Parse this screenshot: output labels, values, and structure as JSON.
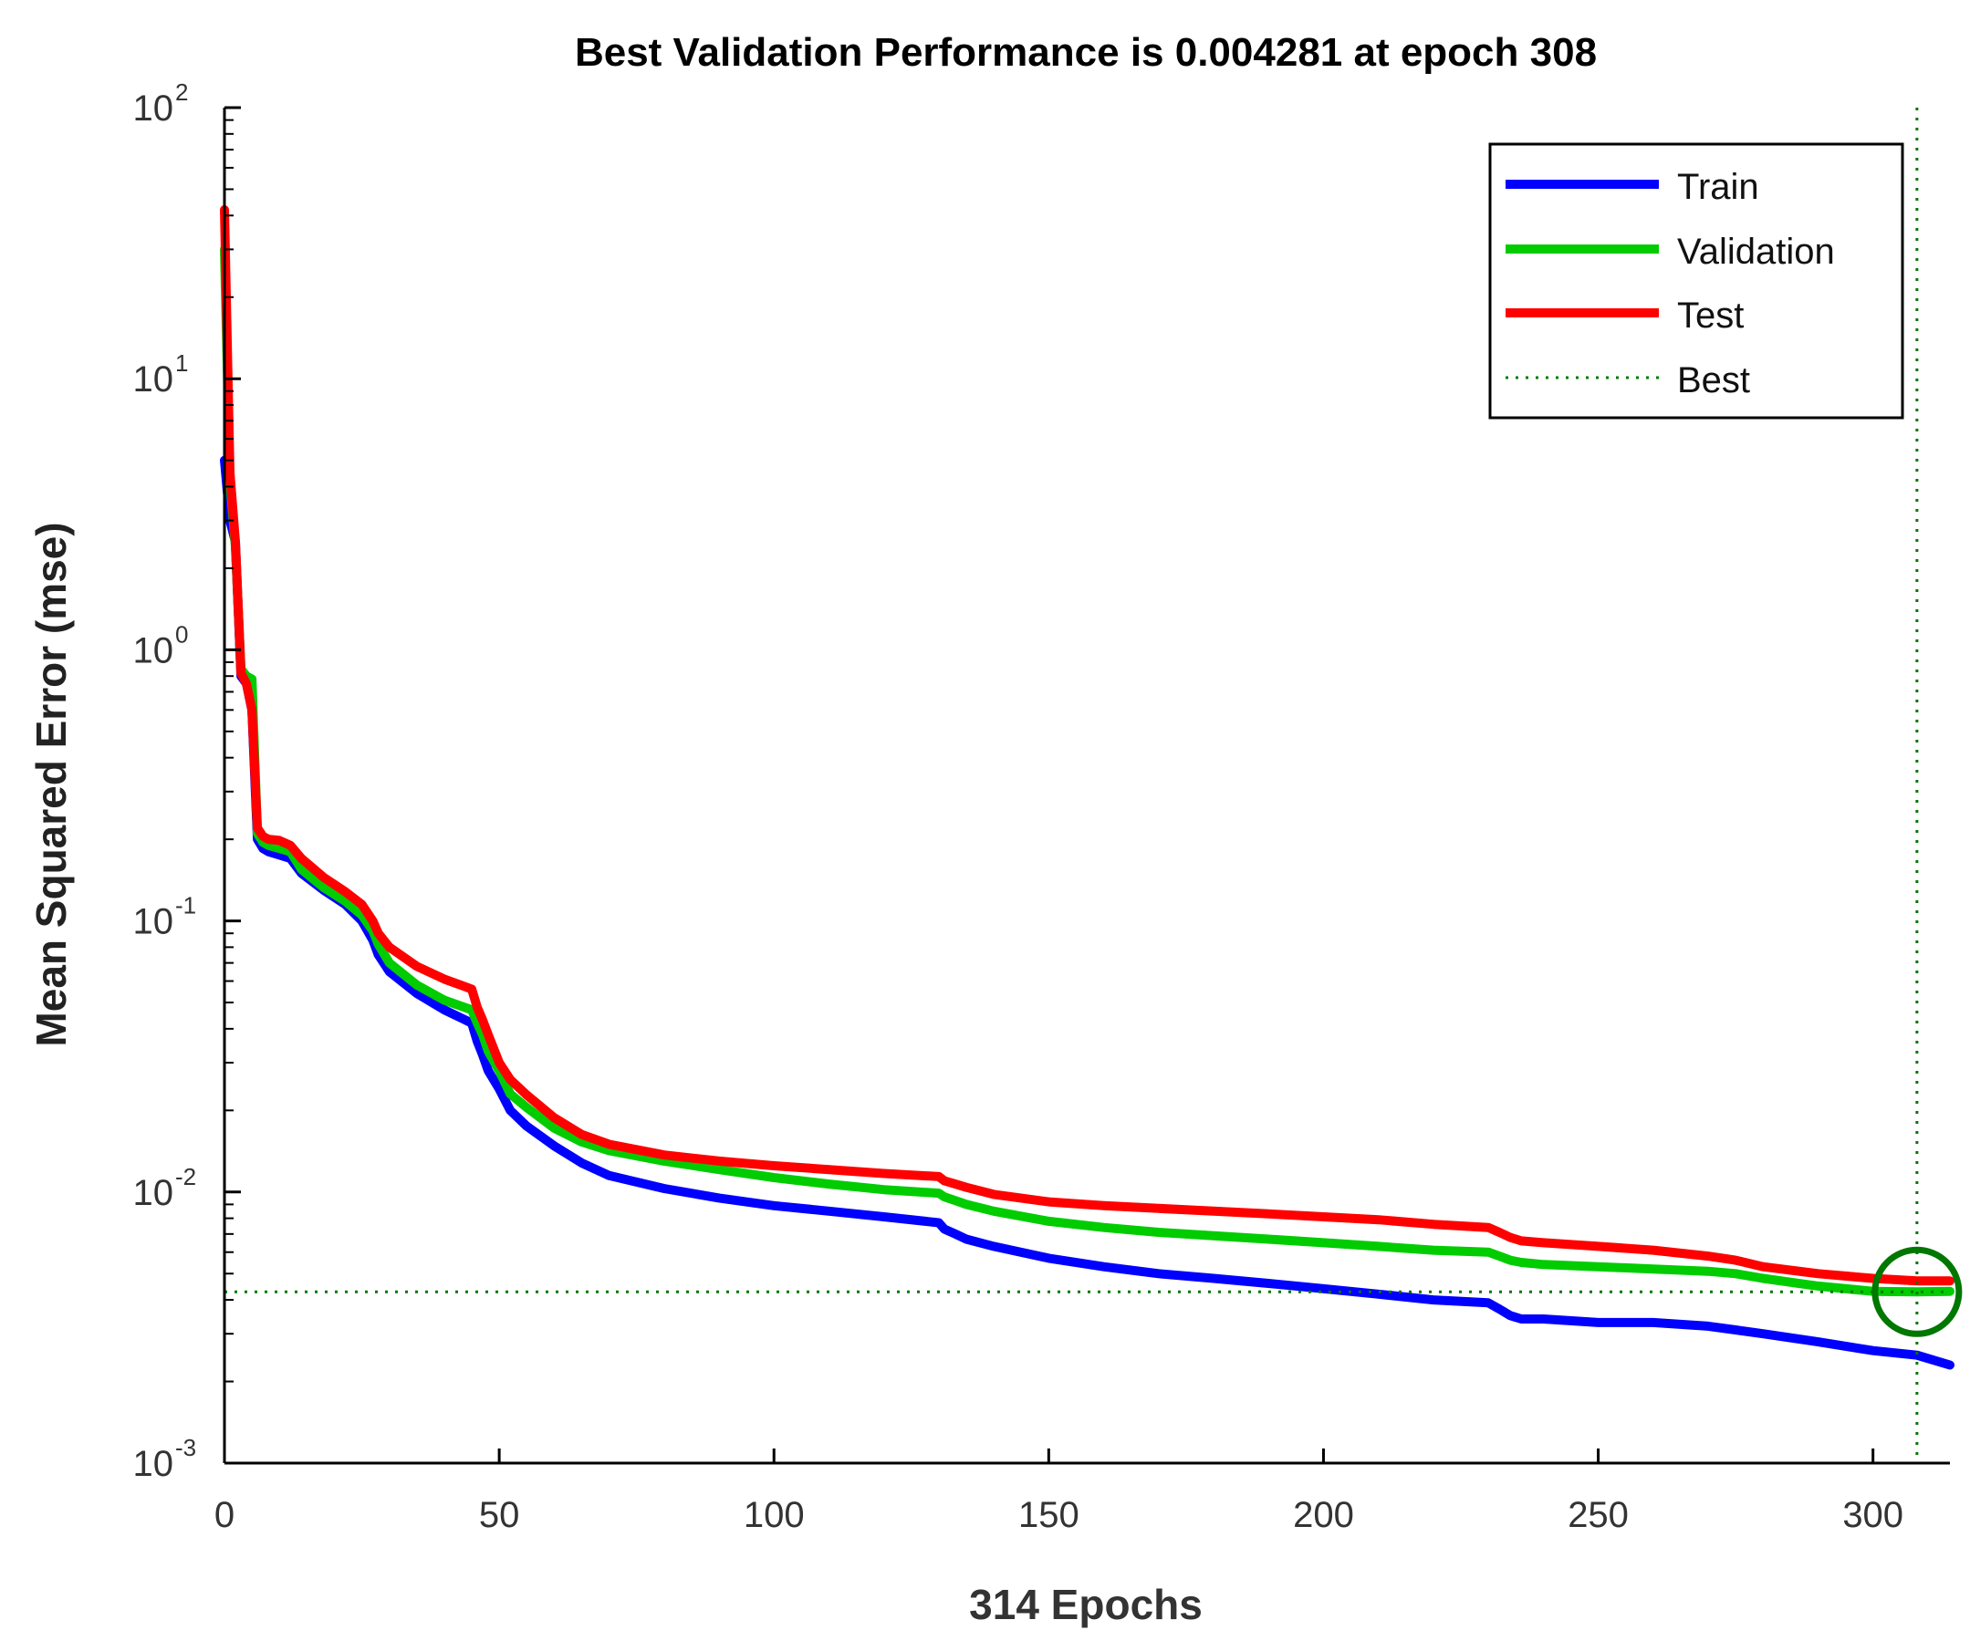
{
  "colors": {
    "train": "#0000ff",
    "validation": "#00cc00",
    "test": "#ff0000",
    "best": "#007700",
    "axis": "#000000"
  },
  "chart_data": {
    "type": "line",
    "title": "Best Validation Performance is 0.004281 at epoch 308",
    "xlabel": "314 Epochs",
    "ylabel": "Mean Squared Error  (mse)",
    "yscale": "log",
    "xlim": [
      0,
      314
    ],
    "ylim": [
      0.001,
      100
    ],
    "xticks": [
      0,
      50,
      100,
      150,
      200,
      250,
      300
    ],
    "xtick_labels": [
      "0",
      "50",
      "100",
      "150",
      "200",
      "250",
      "300"
    ],
    "yticks": [
      0.001,
      0.01,
      0.1,
      1,
      10,
      100
    ],
    "ytick_labels": [
      {
        "base": "10",
        "exp": "-3"
      },
      {
        "base": "10",
        "exp": "-2"
      },
      {
        "base": "10",
        "exp": "-1"
      },
      {
        "base": "10",
        "exp": "0"
      },
      {
        "base": "10",
        "exp": "1"
      },
      {
        "base": "10",
        "exp": "2"
      }
    ],
    "legend": {
      "position": "top-right",
      "entries": [
        "Train",
        "Validation",
        "Test",
        "Best"
      ]
    },
    "best": {
      "epoch": 308,
      "value": 0.004281
    },
    "series": [
      {
        "name": "Train",
        "x": [
          0,
          1,
          2,
          3,
          4,
          5,
          6,
          7,
          8,
          10,
          12,
          14,
          18,
          22,
          25,
          27,
          28,
          30,
          35,
          40,
          45,
          46,
          47,
          48,
          50,
          52,
          55,
          60,
          65,
          70,
          80,
          90,
          100,
          110,
          120,
          130,
          131,
          133,
          135,
          140,
          150,
          160,
          170,
          180,
          190,
          200,
          210,
          220,
          230,
          232,
          234,
          236,
          240,
          250,
          260,
          270,
          275,
          280,
          290,
          300,
          308,
          314
        ],
        "values": [
          5,
          3,
          2.5,
          0.8,
          0.75,
          0.6,
          0.2,
          0.185,
          0.18,
          0.175,
          0.17,
          0.15,
          0.13,
          0.115,
          0.1,
          0.085,
          0.075,
          0.065,
          0.054,
          0.047,
          0.042,
          0.036,
          0.032,
          0.028,
          0.024,
          0.02,
          0.0175,
          0.0148,
          0.0128,
          0.0115,
          0.0103,
          0.0095,
          0.0089,
          0.0085,
          0.0081,
          0.0077,
          0.0073,
          0.007,
          0.0067,
          0.0063,
          0.0057,
          0.0053,
          0.005,
          0.0048,
          0.0046,
          0.0044,
          0.0042,
          0.004,
          0.0039,
          0.0037,
          0.0035,
          0.0034,
          0.0034,
          0.0033,
          0.0033,
          0.0032,
          0.0031,
          0.003,
          0.0028,
          0.0026,
          0.0025,
          0.0023
        ]
      },
      {
        "name": "Validation",
        "x": [
          0,
          1,
          2,
          3,
          4,
          5,
          6,
          7,
          8,
          10,
          12,
          14,
          18,
          22,
          25,
          27,
          28,
          30,
          35,
          40,
          45,
          46,
          47,
          48,
          50,
          52,
          55,
          60,
          65,
          70,
          80,
          90,
          100,
          110,
          120,
          130,
          131,
          133,
          135,
          140,
          150,
          160,
          170,
          180,
          190,
          200,
          210,
          220,
          230,
          232,
          234,
          236,
          240,
          250,
          260,
          270,
          275,
          280,
          290,
          300,
          308,
          314
        ],
        "values": [
          30,
          4.2,
          2.4,
          0.85,
          0.8,
          0.78,
          0.21,
          0.195,
          0.19,
          0.185,
          0.18,
          0.155,
          0.133,
          0.118,
          0.105,
          0.092,
          0.082,
          0.07,
          0.058,
          0.051,
          0.047,
          0.042,
          0.038,
          0.033,
          0.028,
          0.023,
          0.0205,
          0.0172,
          0.0153,
          0.0142,
          0.013,
          0.0121,
          0.0113,
          0.0107,
          0.0102,
          0.0099,
          0.0096,
          0.0093,
          0.009,
          0.0085,
          0.0078,
          0.0074,
          0.0071,
          0.0069,
          0.0067,
          0.0065,
          0.0063,
          0.0061,
          0.006,
          0.0058,
          0.0056,
          0.0055,
          0.0054,
          0.0053,
          0.0052,
          0.0051,
          0.005,
          0.0048,
          0.0045,
          0.0043,
          0.004281,
          0.0043
        ]
      },
      {
        "name": "Test",
        "x": [
          0,
          1,
          2,
          3,
          4,
          5,
          6,
          7,
          8,
          10,
          12,
          14,
          18,
          22,
          25,
          27,
          28,
          30,
          35,
          40,
          45,
          46,
          47,
          48,
          50,
          52,
          55,
          60,
          65,
          70,
          80,
          90,
          100,
          110,
          120,
          130,
          131,
          133,
          135,
          140,
          150,
          160,
          170,
          180,
          190,
          200,
          210,
          220,
          230,
          232,
          234,
          236,
          240,
          250,
          260,
          270,
          275,
          280,
          290,
          300,
          308,
          314
        ],
        "values": [
          42,
          4.5,
          2.5,
          0.82,
          0.75,
          0.6,
          0.22,
          0.205,
          0.2,
          0.198,
          0.19,
          0.17,
          0.145,
          0.128,
          0.115,
          0.1,
          0.09,
          0.08,
          0.068,
          0.061,
          0.056,
          0.048,
          0.043,
          0.038,
          0.03,
          0.026,
          0.0228,
          0.0188,
          0.0163,
          0.015,
          0.0137,
          0.013,
          0.0125,
          0.0121,
          0.0117,
          0.0114,
          0.011,
          0.0107,
          0.0104,
          0.0098,
          0.0092,
          0.0089,
          0.0087,
          0.0085,
          0.0083,
          0.0081,
          0.0079,
          0.0076,
          0.0074,
          0.0071,
          0.0068,
          0.0066,
          0.0065,
          0.0063,
          0.0061,
          0.0058,
          0.0056,
          0.0053,
          0.005,
          0.0048,
          0.0047,
          0.0047
        ]
      }
    ]
  }
}
